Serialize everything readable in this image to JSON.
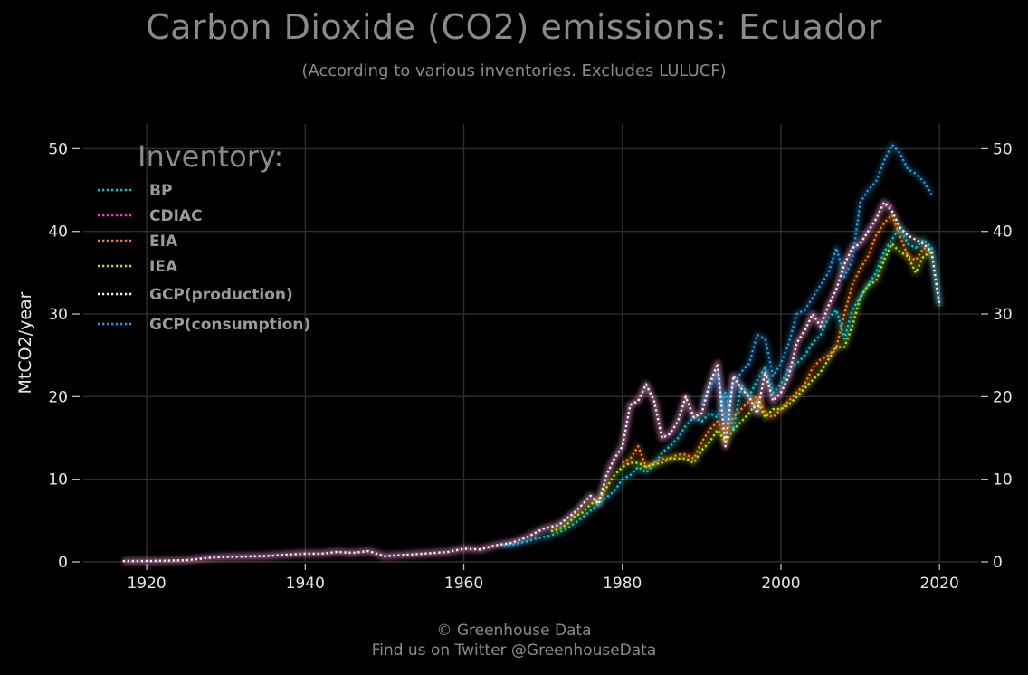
{
  "header": {
    "title": "Carbon Dioxide (CO2) emissions: Ecuador",
    "subtitle": "(According to various inventories. Excludes LULUCF)"
  },
  "footer": {
    "copyright": "© Greenhouse Data",
    "twitter": "Find us on Twitter @GreenhouseData"
  },
  "chart_data": {
    "type": "line",
    "title": "Carbon Dioxide (CO2) emissions: Ecuador",
    "subtitle": "(According to various inventories. Excludes LULUCF)",
    "xlabel": "",
    "ylabel": "MtCO2/year",
    "xlim": [
      1912,
      2025
    ],
    "ylim": [
      0,
      53
    ],
    "x_ticks": [
      1920,
      1940,
      1960,
      1980,
      2000,
      2020
    ],
    "y_ticks": [
      0,
      10,
      20,
      30,
      40,
      50
    ],
    "grid": true,
    "legend_title": "Inventory:",
    "legend_position": "top-left",
    "line_style": "dotted",
    "series": [
      {
        "name": "BP",
        "color": "#00c8e0",
        "x": [
          1965,
          1966,
          1967,
          1968,
          1969,
          1970,
          1971,
          1972,
          1973,
          1974,
          1975,
          1976,
          1977,
          1978,
          1979,
          1980,
          1981,
          1982,
          1983,
          1984,
          1985,
          1986,
          1987,
          1988,
          1989,
          1990,
          1991,
          1992,
          1993,
          1994,
          1995,
          1996,
          1997,
          1998,
          1999,
          2000,
          2001,
          2002,
          2003,
          2004,
          2005,
          2006,
          2007,
          2008,
          2009,
          2010,
          2011,
          2012,
          2013,
          2014,
          2015,
          2016,
          2017,
          2018,
          2019,
          2020
        ],
        "y": [
          2.0,
          2.1,
          2.3,
          2.5,
          2.8,
          3.0,
          3.2,
          3.6,
          4.0,
          4.7,
          5.4,
          6.2,
          7.0,
          7.8,
          8.6,
          10.0,
          10.5,
          11.5,
          10.8,
          11.8,
          13.2,
          14.0,
          15.0,
          16.5,
          17.5,
          17.0,
          18.0,
          17.5,
          20.5,
          16.0,
          21.5,
          20.0,
          22.0,
          23.5,
          20.5,
          21.5,
          23.5,
          24.0,
          25.0,
          26.5,
          27.5,
          29.5,
          30.5,
          27.0,
          30.5,
          32.0,
          33.5,
          35.0,
          37.5,
          39.0,
          40.5,
          38.5,
          38.0,
          39.0,
          38.0,
          31.0
        ]
      },
      {
        "name": "CDIAC",
        "color": "#ff3eb5",
        "x": [
          1917,
          1920,
          1925,
          1928,
          1930,
          1935,
          1938,
          1940,
          1942,
          1944,
          1946,
          1948,
          1950,
          1955,
          1958,
          1960,
          1962,
          1964,
          1966,
          1968,
          1970,
          1972,
          1974,
          1976,
          1977,
          1978,
          1979,
          1980,
          1981,
          1982,
          1983,
          1984,
          1985,
          1986,
          1987,
          1988,
          1989,
          1990,
          1991,
          1992,
          1993,
          1994,
          1995,
          1996,
          1997,
          1998,
          1999,
          2000,
          2001,
          2002,
          2003,
          2004,
          2005,
          2006,
          2007,
          2008,
          2009,
          2010,
          2011,
          2012,
          2013,
          2014
        ],
        "y": [
          0.1,
          0.1,
          0.2,
          0.5,
          0.6,
          0.7,
          0.9,
          1.0,
          1.0,
          1.2,
          1.1,
          1.3,
          0.7,
          1.0,
          1.2,
          1.6,
          1.5,
          2.0,
          2.3,
          3.0,
          4.0,
          4.5,
          6.0,
          8.0,
          7.0,
          10.5,
          12.5,
          14.0,
          19.0,
          19.5,
          21.5,
          19.5,
          15.0,
          15.5,
          17.0,
          20.0,
          17.5,
          18.0,
          21.5,
          24.0,
          14.0,
          22.5,
          21.0,
          20.0,
          18.0,
          23.0,
          19.5,
          20.5,
          22.5,
          26.5,
          28.0,
          30.0,
          28.5,
          31.0,
          33.0,
          36.0,
          38.0,
          38.5,
          40.0,
          41.5,
          43.5,
          43.0
        ]
      },
      {
        "name": "EIA",
        "color": "#ff7f0e",
        "x": [
          1980,
          1981,
          1982,
          1983,
          1984,
          1985,
          1986,
          1987,
          1988,
          1989,
          1990,
          1991,
          1992,
          1993,
          1994,
          1995,
          1996,
          1997,
          1998,
          1999,
          2000,
          2001,
          2002,
          2003,
          2004,
          2005,
          2006,
          2007,
          2008,
          2009,
          2010,
          2011,
          2012,
          2013,
          2014,
          2015,
          2016,
          2017,
          2018,
          2019
        ],
        "y": [
          12.0,
          12.5,
          14.0,
          11.5,
          12.0,
          12.5,
          12.5,
          13.0,
          13.0,
          12.5,
          14.5,
          16.0,
          17.0,
          15.5,
          17.5,
          18.5,
          19.5,
          20.0,
          18.0,
          17.5,
          18.5,
          19.5,
          20.5,
          21.5,
          23.5,
          24.5,
          25.0,
          26.0,
          30.0,
          33.5,
          35.5,
          37.0,
          39.5,
          41.0,
          42.0,
          39.5,
          37.0,
          36.5,
          38.0,
          37.5
        ]
      },
      {
        "name": "IEA",
        "color": "#b8e600",
        "x": [
          1971,
          1972,
          1973,
          1974,
          1975,
          1976,
          1977,
          1978,
          1979,
          1980,
          1981,
          1982,
          1983,
          1984,
          1985,
          1986,
          1987,
          1988,
          1989,
          1990,
          1991,
          1992,
          1993,
          1994,
          1995,
          1996,
          1997,
          1998,
          1999,
          2000,
          2001,
          2002,
          2003,
          2004,
          2005,
          2006,
          2007,
          2008,
          2009,
          2010,
          2011,
          2012,
          2013,
          2014,
          2015,
          2016,
          2017,
          2018,
          2019
        ],
        "y": [
          3.7,
          4.0,
          4.5,
          5.5,
          6.0,
          7.0,
          7.5,
          9.0,
          10.5,
          11.5,
          12.0,
          12.0,
          11.5,
          11.8,
          12.0,
          12.5,
          12.5,
          12.5,
          12.0,
          13.5,
          14.5,
          16.0,
          14.5,
          16.0,
          17.0,
          18.0,
          19.5,
          17.5,
          18.5,
          18.5,
          19.0,
          20.0,
          21.0,
          22.0,
          23.0,
          24.5,
          26.0,
          26.0,
          28.5,
          32.0,
          33.5,
          34.0,
          36.5,
          38.5,
          37.5,
          37.0,
          35.0,
          37.0,
          37.5
        ]
      },
      {
        "name": "GCP(production)",
        "color": "#f2f2f2",
        "x": [
          1917,
          1920,
          1925,
          1928,
          1930,
          1935,
          1938,
          1940,
          1942,
          1944,
          1946,
          1948,
          1950,
          1955,
          1958,
          1960,
          1962,
          1964,
          1966,
          1968,
          1970,
          1972,
          1974,
          1976,
          1977,
          1978,
          1979,
          1980,
          1981,
          1982,
          1983,
          1984,
          1985,
          1986,
          1987,
          1988,
          1989,
          1990,
          1991,
          1992,
          1993,
          1994,
          1995,
          1996,
          1997,
          1998,
          1999,
          2000,
          2001,
          2002,
          2003,
          2004,
          2005,
          2006,
          2007,
          2008,
          2009,
          2010,
          2011,
          2012,
          2013,
          2014,
          2015,
          2016,
          2017,
          2018,
          2019,
          2020
        ],
        "y": [
          0.1,
          0.1,
          0.2,
          0.5,
          0.6,
          0.7,
          0.9,
          1.0,
          1.0,
          1.2,
          1.1,
          1.3,
          0.7,
          1.0,
          1.2,
          1.6,
          1.5,
          2.0,
          2.3,
          3.0,
          4.0,
          4.5,
          6.0,
          8.0,
          7.0,
          10.5,
          12.5,
          14.0,
          19.0,
          19.5,
          21.5,
          19.5,
          15.0,
          15.5,
          17.0,
          20.0,
          17.5,
          18.0,
          21.5,
          24.0,
          14.0,
          22.5,
          21.0,
          20.0,
          18.0,
          23.0,
          19.5,
          20.5,
          22.5,
          26.5,
          28.0,
          30.0,
          28.5,
          31.0,
          33.0,
          36.0,
          38.0,
          38.5,
          40.0,
          41.5,
          43.5,
          42.5,
          40.5,
          39.5,
          39.0,
          38.5,
          37.5,
          31.0
        ]
      },
      {
        "name": "GCP(consumption)",
        "color": "#1f9ee8",
        "x": [
          1990,
          1991,
          1992,
          1993,
          1994,
          1995,
          1996,
          1997,
          1998,
          1999,
          2000,
          2001,
          2002,
          2003,
          2004,
          2005,
          2006,
          2007,
          2008,
          2009,
          2010,
          2011,
          2012,
          2013,
          2014,
          2015,
          2016,
          2017,
          2018,
          2019
        ],
        "y": [
          19.0,
          21.0,
          23.0,
          17.0,
          21.5,
          23.0,
          24.0,
          27.5,
          27.0,
          22.5,
          24.0,
          26.5,
          30.0,
          30.5,
          32.0,
          33.5,
          35.0,
          38.0,
          34.5,
          36.5,
          43.5,
          45.0,
          46.0,
          48.5,
          50.5,
          49.5,
          47.5,
          47.0,
          46.0,
          44.5
        ]
      }
    ]
  }
}
